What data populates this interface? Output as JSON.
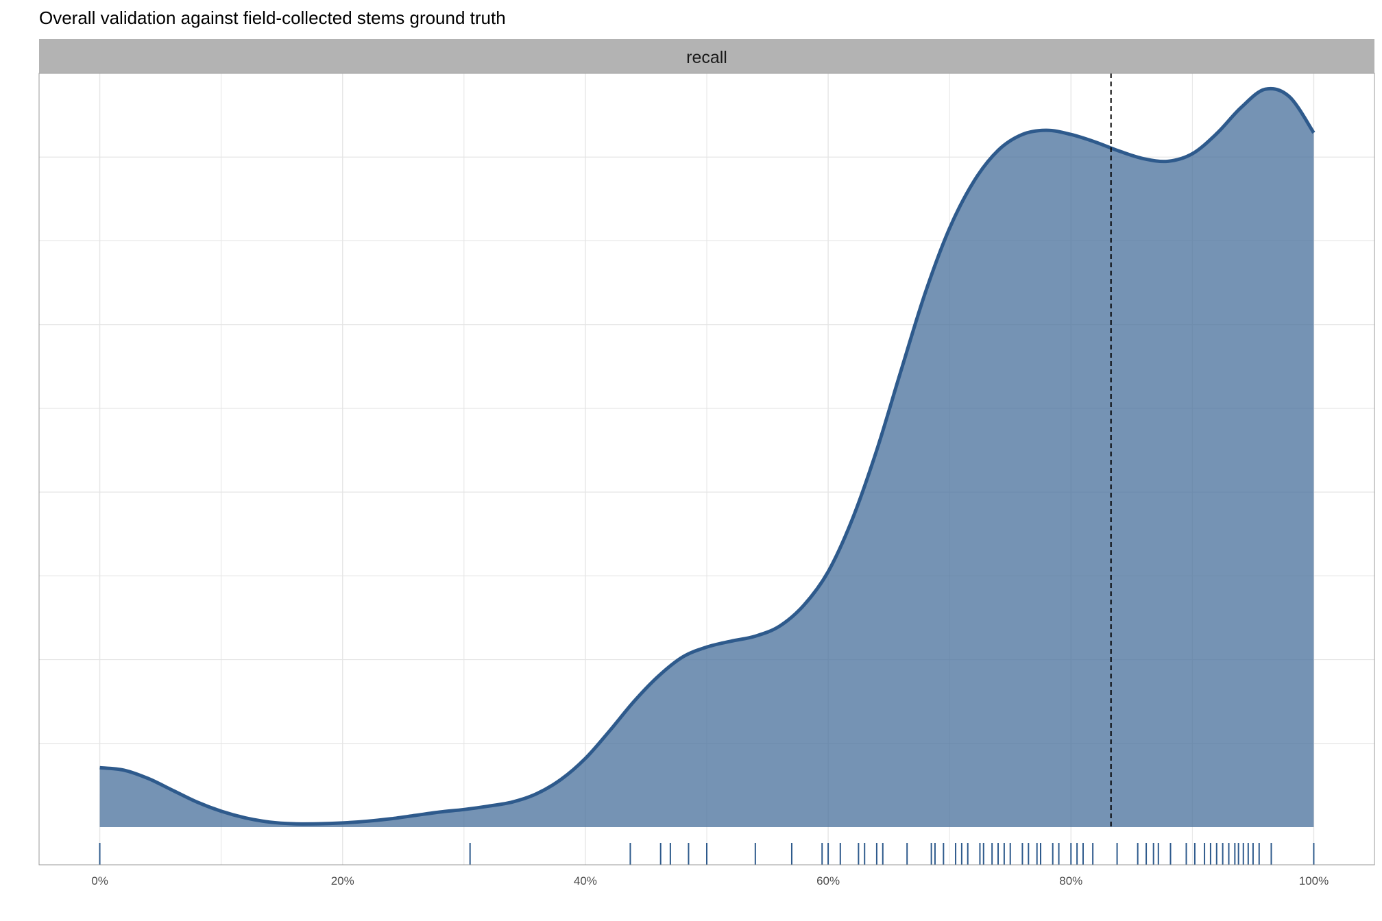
{
  "chart_data": {
    "type": "area",
    "title": "Overall validation against field-collected stems ground truth",
    "facet_label": "recall",
    "xlabel": "",
    "ylabel": "",
    "x_ticks": [
      "0%",
      "20%",
      "40%",
      "60%",
      "80%",
      "100%"
    ],
    "xlim": [
      -0.05,
      1.05
    ],
    "ylim": [
      -0.45,
      9.0
    ],
    "y_grid": [
      1,
      2,
      3,
      4,
      5,
      6,
      7,
      8,
      9
    ],
    "grid": true,
    "mean_line_x": 0.833,
    "colors": {
      "fill": "#476f9b",
      "line": "#2e5a8c",
      "rug": "#2e5a8c",
      "mean_line": "#000000",
      "strip": "#b3b3b3",
      "grid": "#e5e5e5",
      "panel_border": "#999999"
    },
    "density": {
      "x": [
        0,
        0.02,
        0.04,
        0.06,
        0.08,
        0.1,
        0.12,
        0.14,
        0.16,
        0.18,
        0.2,
        0.22,
        0.24,
        0.26,
        0.28,
        0.3,
        0.32,
        0.34,
        0.36,
        0.38,
        0.4,
        0.42,
        0.44,
        0.46,
        0.48,
        0.5,
        0.52,
        0.54,
        0.56,
        0.58,
        0.6,
        0.62,
        0.64,
        0.66,
        0.68,
        0.7,
        0.72,
        0.74,
        0.76,
        0.78,
        0.8,
        0.82,
        0.84,
        0.86,
        0.88,
        0.9,
        0.92,
        0.94,
        0.96,
        0.98,
        1.0
      ],
      "y": [
        0.71,
        0.68,
        0.58,
        0.44,
        0.3,
        0.19,
        0.11,
        0.06,
        0.04,
        0.04,
        0.05,
        0.07,
        0.1,
        0.14,
        0.18,
        0.21,
        0.25,
        0.3,
        0.4,
        0.57,
        0.82,
        1.15,
        1.5,
        1.8,
        2.03,
        2.15,
        2.22,
        2.28,
        2.4,
        2.65,
        3.05,
        3.68,
        4.5,
        5.45,
        6.38,
        7.15,
        7.71,
        8.08,
        8.27,
        8.32,
        8.27,
        8.18,
        8.07,
        7.98,
        7.95,
        8.04,
        8.28,
        8.59,
        8.81,
        8.72,
        8.29
      ]
    },
    "rug": [
      0,
      0.305,
      0.437,
      0.462,
      0.47,
      0.485,
      0.5,
      0.54,
      0.57,
      0.595,
      0.6,
      0.61,
      0.625,
      0.63,
      0.64,
      0.645,
      0.665,
      0.685,
      0.688,
      0.695,
      0.705,
      0.71,
      0.715,
      0.725,
      0.728,
      0.735,
      0.74,
      0.745,
      0.75,
      0.76,
      0.765,
      0.772,
      0.775,
      0.785,
      0.79,
      0.8,
      0.805,
      0.81,
      0.818,
      0.838,
      0.855,
      0.862,
      0.868,
      0.872,
      0.882,
      0.895,
      0.902,
      0.91,
      0.915,
      0.92,
      0.925,
      0.93,
      0.935,
      0.938,
      0.942,
      0.946,
      0.95,
      0.955,
      0.965,
      1.0
    ]
  }
}
